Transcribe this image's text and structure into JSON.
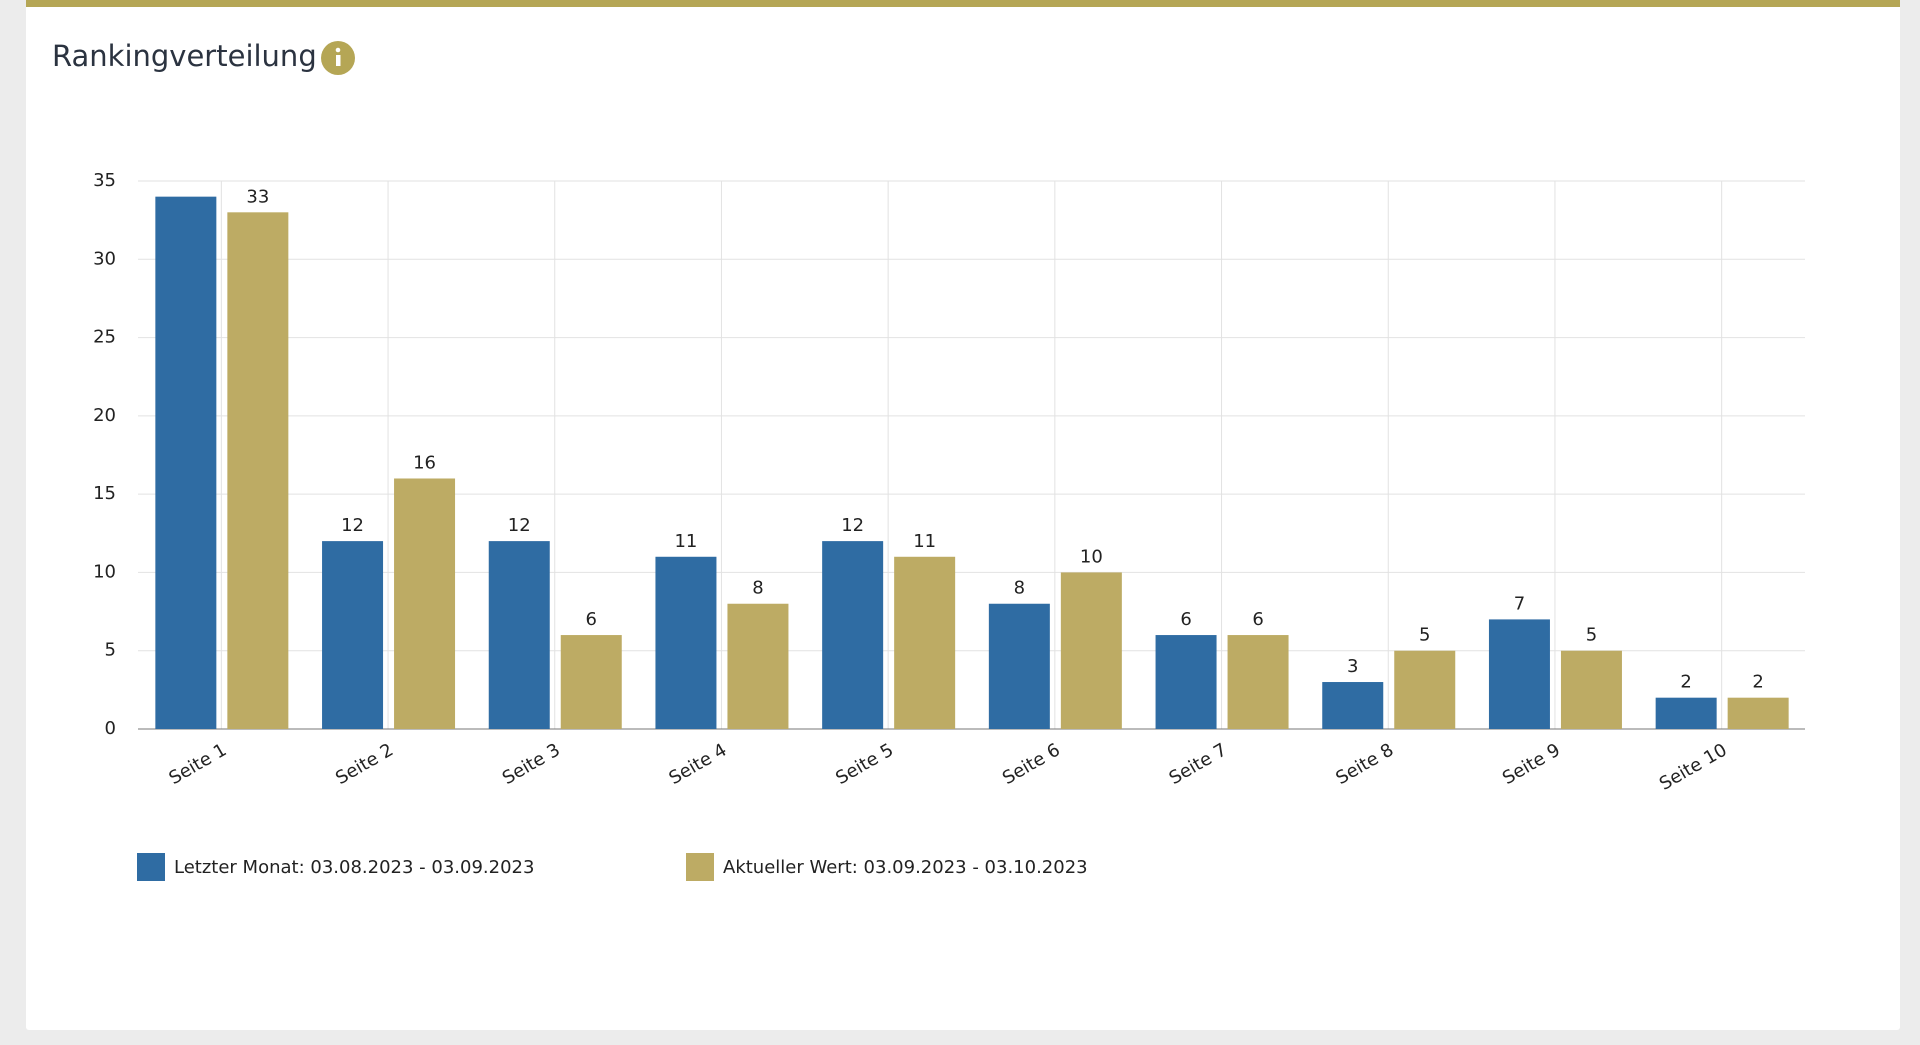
{
  "title": "Rankingverteilung",
  "chart_data": {
    "type": "bar",
    "categories": [
      "Seite 1",
      "Seite 2",
      "Seite 3",
      "Seite 4",
      "Seite 5",
      "Seite 6",
      "Seite 7",
      "Seite 8",
      "Seite 9",
      "Seite 10"
    ],
    "series": [
      {
        "name": "Letzter Monat: 03.08.2023 - 03.09.2023",
        "color": "#2f6ca3",
        "values": [
          34,
          12,
          12,
          11,
          12,
          8,
          6,
          3,
          7,
          2
        ],
        "value_labels": [
          null,
          "12",
          "12",
          "11",
          "12",
          "8",
          "6",
          "3",
          "7",
          "2"
        ]
      },
      {
        "name": "Aktueller Wert: 03.09.2023 - 03.10.2023",
        "color": "#bdab64",
        "values": [
          33,
          16,
          6,
          8,
          11,
          10,
          6,
          5,
          5,
          2
        ],
        "value_labels": [
          "33",
          "16",
          "6",
          "8",
          "11",
          "10",
          "6",
          "5",
          "5",
          "2"
        ]
      }
    ],
    "ylim": [
      0,
      35
    ],
    "yticks": [
      0,
      5,
      10,
      15,
      20,
      25,
      30,
      35
    ],
    "grid": true
  }
}
